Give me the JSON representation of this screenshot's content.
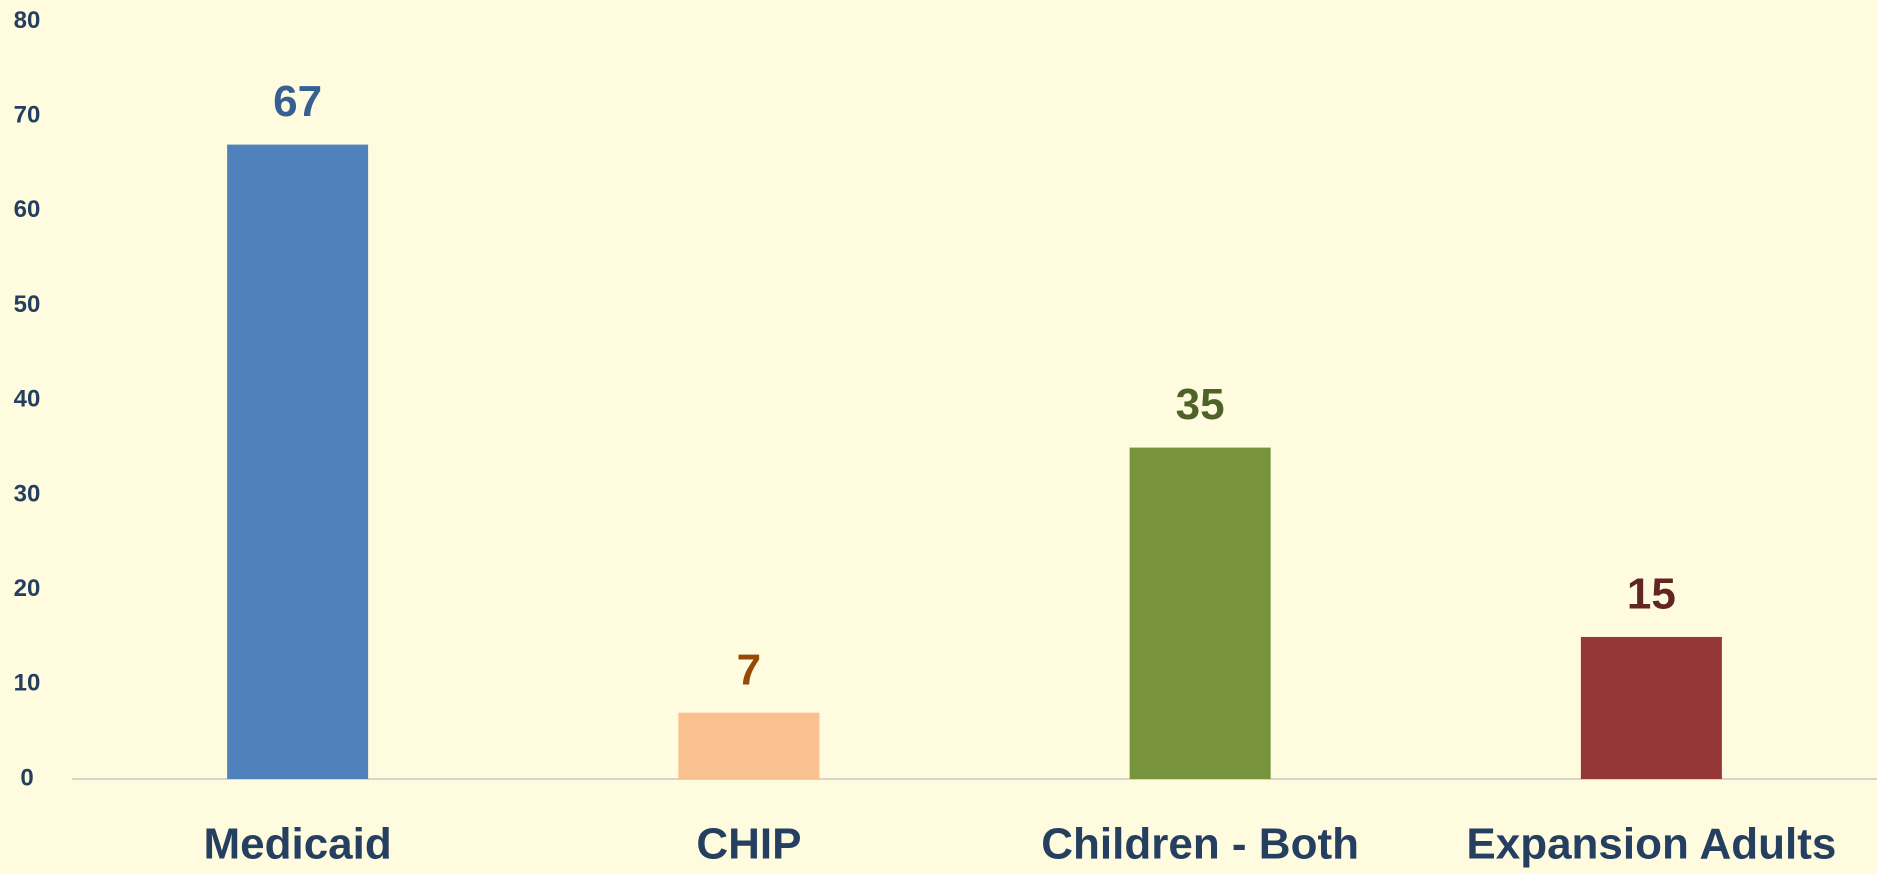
{
  "chart_data": {
    "type": "bar",
    "categories": [
      "Medicaid",
      "CHIP",
      "Children - Both",
      "Expansion Adults"
    ],
    "values": [
      67,
      7,
      35,
      15
    ],
    "colors": [
      "#4f81bd",
      "#f9c090",
      "#77933c",
      "#953735"
    ],
    "value_label_colors": [
      "#376092",
      "#984807",
      "#4f6228",
      "#632523"
    ],
    "ylim": [
      0,
      80
    ],
    "yticks": [
      0,
      10,
      20,
      30,
      40,
      50,
      60,
      70,
      80
    ],
    "grid": false
  }
}
